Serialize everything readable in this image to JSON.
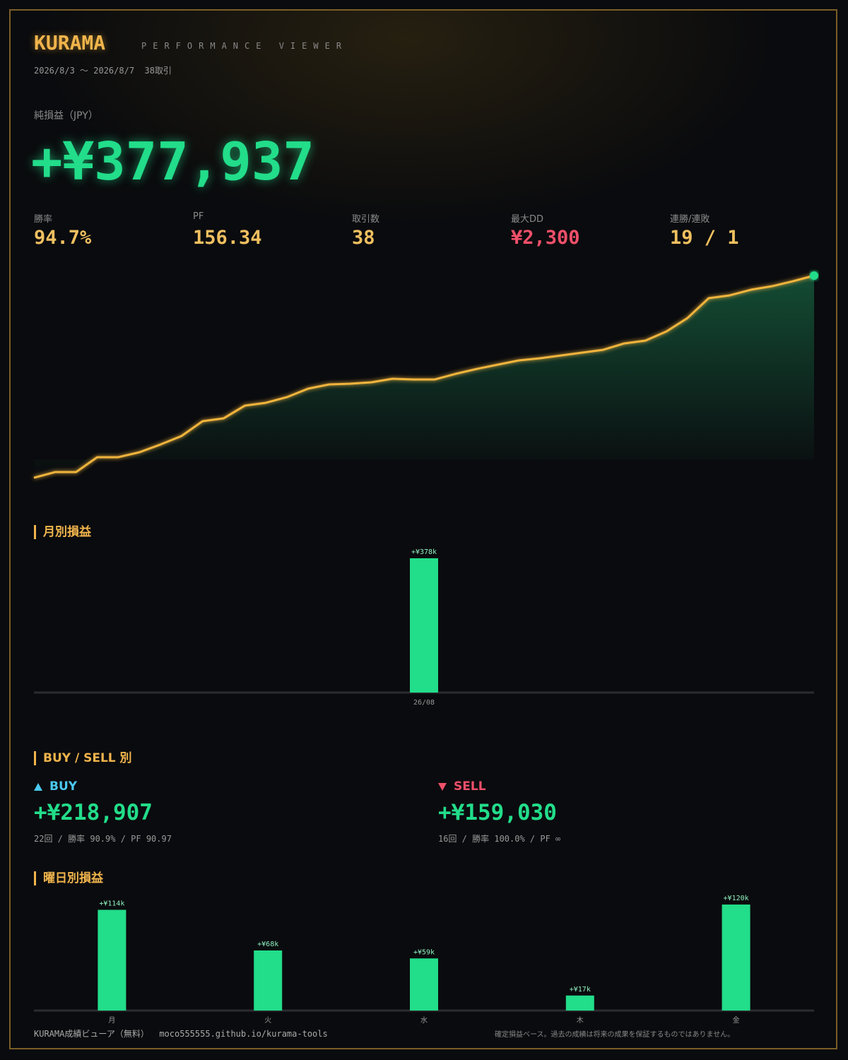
{
  "header": {
    "title": "KURAMA",
    "subtitle": "PERFORMANCE VIEWER",
    "period": "2026/8/3 〜 2026/8/7  38取引"
  },
  "net": {
    "label": "純損益（JPY）",
    "value": "+¥377,937"
  },
  "kpis": [
    {
      "label": "勝率",
      "value": "94.7%"
    },
    {
      "label": "PF",
      "value": "156.34"
    },
    {
      "label": "取引数",
      "value": "38"
    },
    {
      "label": "最大DD",
      "value": "¥2,300"
    },
    {
      "label": "連勝/連敗",
      "value": "19 / 1"
    }
  ],
  "sections": {
    "monthly": "月別損益",
    "side": "BUY / SELL 別",
    "weekday": "曜日別損益"
  },
  "sides": [
    {
      "name": "BUY",
      "value": "+¥218,907",
      "stats": "22回 / 勝率 90.9% / PF 90.97"
    },
    {
      "name": "SELL",
      "value": "+¥159,030",
      "stats": "16回 / 勝率 100.0% / PF ∞"
    }
  ],
  "footer": {
    "left": "KURAMA成績ビューア（無料）  moco555555.github.io/kurama-tools",
    "right": "確定損益ベース。過去の成績は将来の成果を保証するものではありません。"
  },
  "chart_data": [
    {
      "type": "line",
      "color": "#f0b43c",
      "area_color": "#1f9a62",
      "x": [
        1,
        2,
        3,
        4,
        5,
        6,
        7,
        8,
        9,
        10,
        11,
        12,
        13,
        14,
        15,
        16,
        17,
        18,
        19,
        20,
        21,
        22,
        23,
        24,
        25,
        26,
        27,
        28,
        29,
        30,
        31,
        32,
        33,
        34,
        35,
        36,
        37,
        38
      ],
      "values": [
        17600,
        27700,
        27700,
        54200,
        54200,
        63000,
        76800,
        92000,
        118400,
        123500,
        146100,
        151200,
        161300,
        176400,
        183900,
        185200,
        187700,
        194000,
        192700,
        192700,
        202800,
        211600,
        219200,
        226800,
        230500,
        235600,
        240600,
        245700,
        257000,
        262000,
        278400,
        302400,
        337600,
        342700,
        352700,
        359000,
        367900,
        377937
      ],
      "xlim": [
        1,
        38
      ],
      "ylim": [
        0,
        377937
      ]
    },
    {
      "type": "bar",
      "color": "#22dd8a",
      "categories": [
        "26/08"
      ],
      "values": [
        377937
      ],
      "value_labels": [
        "+¥378k"
      ],
      "ylim": [
        0,
        377937
      ]
    },
    {
      "type": "bar",
      "color": "#22dd8a",
      "categories": [
        "月",
        "火",
        "水",
        "木",
        "金"
      ],
      "values": [
        114000,
        68000,
        59000,
        17000,
        120000
      ],
      "value_labels": [
        "+¥114k",
        "+¥68k",
        "+¥59k",
        "+¥17k",
        "+¥120k"
      ],
      "ylim": [
        0,
        120000
      ]
    }
  ]
}
